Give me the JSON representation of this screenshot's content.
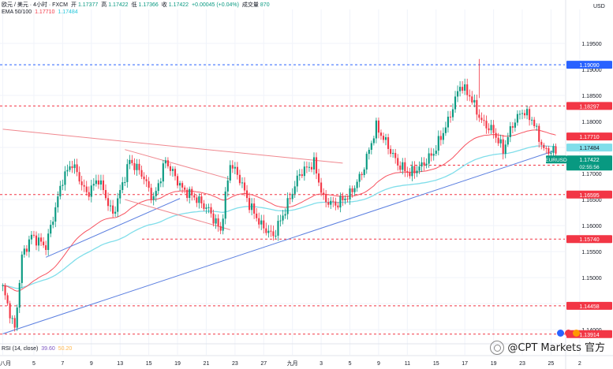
{
  "header": {
    "symbol_line": "欧元 / 美元 · 4小时 · FXCM",
    "open_label": "开",
    "open": "1.17377",
    "high_label": "高",
    "high": "1.17422",
    "low_label": "低",
    "low": "1.17366",
    "close_label": "收",
    "close": "1.17422",
    "change": "+0.00045 (+0.04%)",
    "volume_label": "成交量",
    "volume": "870",
    "ema_label": "EMA 50/100",
    "ema50": "1.17710",
    "ema100": "1.17484"
  },
  "rsi": {
    "label": "RSI (14, close)",
    "value1": "39.60",
    "value2": "50.20"
  },
  "currency": "USD",
  "watermark": "@CPT Markets 官方",
  "colors": {
    "up": "#089981",
    "down": "#f23645",
    "ema50": "#f7525f",
    "ema100": "#80deea",
    "trend_blue": "#5b7fe0",
    "trend_red": "#f0888f",
    "level_red": "#f23645",
    "level_blue": "#2962ff",
    "grid": "#f0f3fa",
    "axis_text": "#131722"
  },
  "chart_data": {
    "type": "candlestick",
    "symbol": "EURUSD",
    "ylim": [
      1.1385,
      1.2
    ],
    "y_ticks": [
      1.14,
      1.145,
      1.15,
      1.155,
      1.16,
      1.165,
      1.17,
      1.175,
      1.18,
      1.185,
      1.19,
      1.195
    ],
    "x_labels": [
      "八月",
      "5",
      "7",
      "9",
      "13",
      "15",
      "19",
      "21",
      "23",
      "27",
      "九月",
      "3",
      "5",
      "9",
      "11",
      "15",
      "17",
      "19",
      "23",
      "25",
      "2"
    ],
    "x_label_index": [
      0,
      13,
      25,
      37,
      49,
      61,
      73,
      85,
      97,
      109,
      121,
      133,
      145,
      157,
      169,
      181,
      193,
      205,
      217,
      229,
      241
    ],
    "horizontal_levels": [
      {
        "price": 1.1909,
        "label": "1.19090",
        "style": "blue"
      },
      {
        "price": 1.18297,
        "label": "1.18297",
        "style": "red"
      },
      {
        "price": 1.1716,
        "label": "1.17160",
        "style": "red"
      },
      {
        "price": 1.16595,
        "label": "1.16595",
        "style": "red"
      },
      {
        "price": 1.1574,
        "label": "1.15740",
        "style": "red"
      },
      {
        "price": 1.14458,
        "label": "1.14458",
        "style": "red"
      },
      {
        "price": 1.13914,
        "label": "1.13914",
        "style": "red"
      }
    ],
    "price_tags": [
      {
        "price": 1.1771,
        "label": "1.17710",
        "kind": "ema50"
      },
      {
        "price": 1.17484,
        "label": "1.17484",
        "kind": "ema100"
      },
      {
        "price": 1.17422,
        "label": "1.17422",
        "kind": "current",
        "symbol": "EURUSD",
        "countdown": "02:55:56"
      }
    ],
    "trendlines": [
      {
        "color": "blue",
        "from": [
          0,
          1.1392
        ],
        "to": [
          230,
          1.1743
        ]
      },
      {
        "color": "blue",
        "from": [
          18,
          1.1539
        ],
        "to": [
          74,
          1.1652
        ]
      },
      {
        "color": "red",
        "from": [
          0,
          1.1785
        ],
        "to": [
          142,
          1.172
        ]
      },
      {
        "color": "red",
        "from": [
          51,
          1.1746
        ],
        "to": [
          95,
          1.1689
        ]
      },
      {
        "color": "red",
        "from": [
          51,
          1.165
        ],
        "to": [
          95,
          1.1592
        ]
      }
    ],
    "anchors": [
      [
        0,
        1.148
      ],
      [
        5,
        1.14
      ],
      [
        8,
        1.154
      ],
      [
        12,
        1.158
      ],
      [
        18,
        1.156
      ],
      [
        25,
        1.169
      ],
      [
        29,
        1.172
      ],
      [
        35,
        1.166
      ],
      [
        40,
        1.169
      ],
      [
        46,
        1.162
      ],
      [
        53,
        1.1725
      ],
      [
        58,
        1.17
      ],
      [
        63,
        1.165
      ],
      [
        68,
        1.1725
      ],
      [
        75,
        1.167
      ],
      [
        80,
        1.1655
      ],
      [
        86,
        1.163
      ],
      [
        91,
        1.159
      ],
      [
        95,
        1.172
      ],
      [
        99,
        1.169
      ],
      [
        103,
        1.164
      ],
      [
        108,
        1.16
      ],
      [
        113,
        1.158
      ],
      [
        118,
        1.163
      ],
      [
        124,
        1.17
      ],
      [
        130,
        1.172
      ],
      [
        134,
        1.165
      ],
      [
        139,
        1.164
      ],
      [
        145,
        1.166
      ],
      [
        150,
        1.17
      ],
      [
        156,
        1.179
      ],
      [
        160,
        1.176
      ],
      [
        165,
        1.1718
      ],
      [
        170,
        1.17
      ],
      [
        175,
        1.1715
      ],
      [
        180,
        1.174
      ],
      [
        186,
        1.18
      ],
      [
        191,
        1.187
      ],
      [
        195,
        1.185
      ],
      [
        200,
        1.18
      ],
      [
        205,
        1.178
      ],
      [
        209,
        1.1745
      ],
      [
        213,
        1.1795
      ],
      [
        217,
        1.182
      ],
      [
        221,
        1.1805
      ],
      [
        226,
        1.1745
      ],
      [
        231,
        1.1742
      ]
    ]
  }
}
